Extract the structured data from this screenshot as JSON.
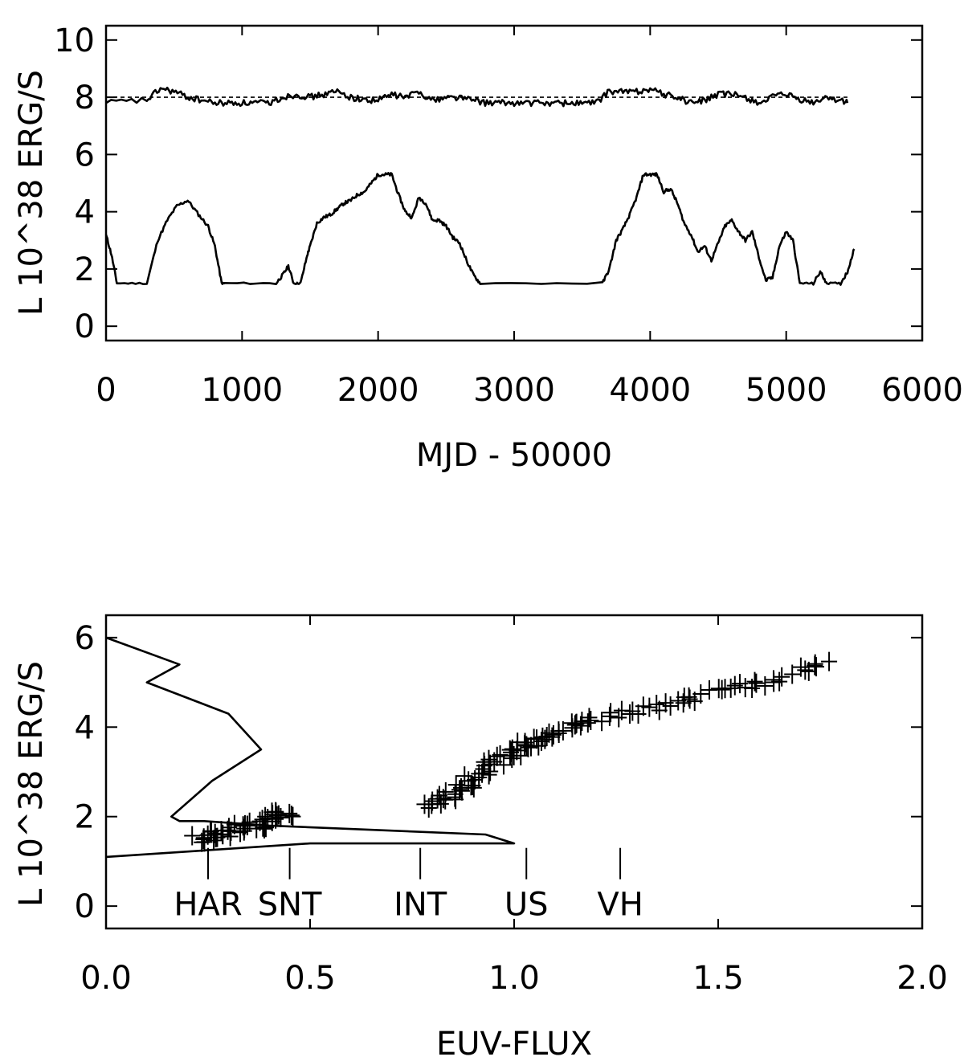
{
  "chart_data": [
    {
      "type": "line",
      "xlabel": "MJD - 50000",
      "ylabel": "L  10^38  ERG/S",
      "xlim": [
        0,
        6000
      ],
      "ylim": [
        -0.5,
        10.5
      ],
      "xticks": [
        0,
        1000,
        2000,
        3000,
        4000,
        5000,
        6000
      ],
      "yticks": [
        0,
        2,
        4,
        6,
        8,
        10
      ],
      "tick_labels_x": [
        "0",
        "1000",
        "2000",
        "3000",
        "4000",
        "5000",
        "6000"
      ],
      "tick_labels_y": [
        "0",
        "2",
        "4",
        "6",
        "8",
        "10"
      ],
      "grid": false,
      "reference_line": {
        "y": 8.0,
        "style": "dashed"
      },
      "series": [
        {
          "x": [
            0,
            40,
            80,
            300,
            380,
            450,
            520,
            600,
            680,
            750,
            800,
            850,
            870,
            1250,
            1300,
            1340,
            1380,
            1430,
            1480,
            1500,
            1550,
            1600,
            1650,
            1700,
            1750,
            1800,
            1850,
            1900,
            1950,
            2000,
            2050,
            2100,
            2150,
            2200,
            2250,
            2300,
            2350,
            2400,
            2450,
            2500,
            2550,
            2600,
            2650,
            2700,
            2750,
            3650,
            3700,
            3750,
            3800,
            3850,
            3900,
            3950,
            4000,
            4050,
            4100,
            4150,
            4200,
            4250,
            4300,
            4350,
            4400,
            4450,
            4500,
            4550,
            4600,
            4650,
            4700,
            4750,
            4800,
            4850,
            4900,
            4950,
            5000,
            5050,
            5100,
            5200,
            5250,
            5300,
            5400,
            5450,
            5500
          ],
          "y": [
            3.2,
            2.5,
            1.5,
            1.5,
            3.0,
            3.7,
            4.2,
            4.4,
            3.9,
            3.5,
            2.8,
            1.5,
            1.5,
            1.5,
            1.8,
            2.1,
            1.5,
            1.5,
            2.5,
            2.8,
            3.6,
            3.8,
            3.9,
            4.1,
            4.3,
            4.4,
            4.6,
            4.7,
            5.0,
            5.3,
            5.3,
            5.3,
            4.6,
            4.0,
            3.8,
            4.5,
            4.3,
            3.7,
            3.7,
            3.5,
            3.1,
            2.9,
            2.3,
            1.8,
            1.5,
            1.5,
            2.0,
            3.0,
            3.4,
            3.9,
            4.5,
            5.3,
            5.3,
            5.3,
            4.7,
            4.8,
            4.3,
            3.6,
            3.2,
            2.6,
            2.8,
            2.3,
            2.9,
            3.5,
            3.7,
            3.3,
            3.0,
            3.3,
            2.4,
            1.6,
            1.7,
            2.8,
            3.3,
            3.0,
            1.5,
            1.5,
            1.9,
            1.5,
            1.5,
            1.9,
            2.7
          ]
        },
        {
          "x": [
            0,
            300,
            400,
            500,
            600,
            700,
            800,
            900,
            1000,
            1100,
            1200,
            1300,
            1400,
            1500,
            1600,
            1700,
            1800,
            1900,
            2000,
            2100,
            2200,
            2300,
            2400,
            2500,
            2600,
            2700,
            2800,
            2900,
            3000,
            3100,
            3200,
            3300,
            3400,
            3500,
            3600,
            3700,
            3800,
            3900,
            4000,
            4100,
            4200,
            4300,
            4400,
            4500,
            4600,
            4700,
            4800,
            4900,
            5000,
            5100,
            5200,
            5300,
            5400,
            5450
          ],
          "y": [
            7.8,
            7.9,
            8.3,
            8.2,
            8.0,
            7.9,
            7.8,
            7.8,
            7.8,
            7.8,
            7.8,
            8.0,
            8.1,
            8.0,
            8.1,
            8.2,
            8.0,
            7.9,
            7.9,
            8.1,
            8.0,
            8.2,
            7.9,
            8.0,
            8.0,
            7.9,
            7.8,
            7.8,
            7.8,
            7.8,
            7.8,
            7.8,
            7.8,
            7.8,
            7.8,
            8.2,
            8.2,
            8.2,
            8.3,
            8.1,
            8.0,
            7.8,
            7.9,
            8.1,
            8.1,
            8.0,
            7.8,
            8.0,
            8.1,
            7.9,
            7.8,
            8.0,
            7.9,
            7.8
          ]
        }
      ]
    },
    {
      "type": "scatter",
      "xlabel": "EUV-FLUX",
      "ylabel": "L  10^38  ERG/S",
      "xlim": [
        0.0,
        2.0
      ],
      "ylim": [
        -0.5,
        6.5
      ],
      "xticks": [
        0.0,
        0.5,
        1.0,
        1.5,
        2.0
      ],
      "yticks": [
        0,
        2,
        4,
        6
      ],
      "tick_labels_x": [
        "0.0",
        "0.5",
        "1.0",
        "1.5",
        "2.0"
      ],
      "tick_labels_y": [
        "0",
        "2",
        "4",
        "6"
      ],
      "grid": false,
      "histogram_x": [
        0.0,
        0.06,
        0.18,
        0.1,
        0.3,
        0.38,
        0.26,
        0.16,
        0.18,
        0.24,
        0.4,
        0.93,
        1.0,
        0.5,
        0.0
      ],
      "histogram_y": [
        6.0,
        5.8,
        5.4,
        5.0,
        4.3,
        3.5,
        2.8,
        2.0,
        1.9,
        1.9,
        1.8,
        1.6,
        1.4,
        1.4,
        1.1
      ],
      "points_x": [
        0.23,
        0.25,
        0.27,
        0.29,
        0.31,
        0.33,
        0.35,
        0.37,
        0.39,
        0.41,
        0.43,
        0.45,
        0.8,
        0.82,
        0.84,
        0.86,
        0.88,
        0.9,
        0.92,
        0.94,
        0.96,
        0.98,
        1.0,
        1.02,
        1.04,
        1.06,
        1.08,
        1.1,
        1.13,
        1.16,
        1.2,
        1.25,
        1.3,
        1.35,
        1.4,
        1.45,
        1.5,
        1.55,
        1.6,
        1.65,
        1.7,
        1.75
      ],
      "points_y": [
        1.5,
        1.55,
        1.6,
        1.65,
        1.7,
        1.75,
        1.8,
        1.85,
        1.9,
        2.0,
        2.05,
        2.1,
        2.25,
        2.35,
        2.5,
        2.6,
        2.75,
        2.85,
        3.0,
        3.1,
        3.25,
        3.35,
        3.45,
        3.55,
        3.65,
        3.7,
        3.75,
        3.85,
        3.95,
        4.05,
        4.15,
        4.25,
        4.35,
        4.45,
        4.55,
        4.65,
        4.75,
        4.85,
        4.95,
        5.1,
        5.25,
        5.4
      ],
      "state_labels": [
        "HAR",
        "SNT",
        "INT",
        "US",
        "VH"
      ],
      "state_markers_x": [
        0.25,
        0.45,
        0.77,
        1.03,
        1.26
      ]
    }
  ]
}
